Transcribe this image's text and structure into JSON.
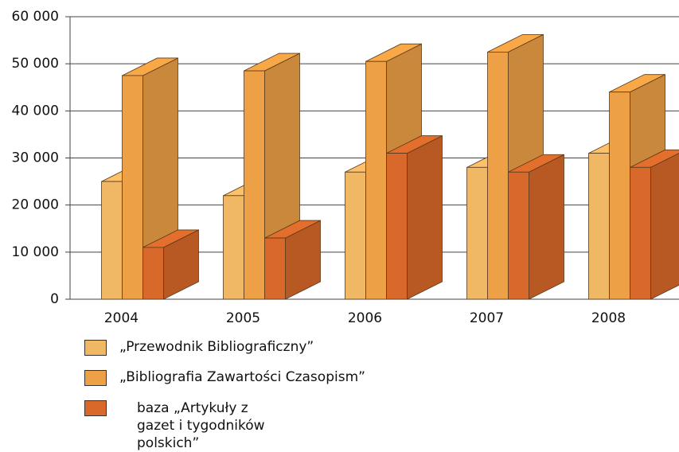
{
  "chart_data": {
    "type": "bar3d",
    "categories": [
      "2004",
      "2005",
      "2006",
      "2007",
      "2008"
    ],
    "series": [
      {
        "name": "„Przewodnik Bibliograficzny”",
        "color": "#f0b865",
        "values": [
          25000,
          22000,
          27000,
          28000,
          31000
        ]
      },
      {
        "name": "„Bibliografia Zawartości Czasopism”",
        "color": "#eda045",
        "values": [
          47500,
          48500,
          50500,
          52500,
          44000
        ]
      },
      {
        "name": "baza „Artykuły z gazet i tygodników polskich”",
        "color": "#d9692a",
        "values": [
          11000,
          13000,
          31000,
          27000,
          28000
        ]
      }
    ],
    "ylim": [
      0,
      60000
    ],
    "yticks": [
      0,
      {
        "value": 10000,
        "label": "10 000"
      },
      {
        "value": 20000,
        "label": "20 000"
      },
      {
        "value": 30000,
        "label": "30 000"
      },
      {
        "value": 40000,
        "label": "40 000"
      },
      {
        "value": 50000,
        "label": "50 000"
      },
      {
        "value": 60000,
        "label": "60 000"
      }
    ],
    "grid": true
  }
}
